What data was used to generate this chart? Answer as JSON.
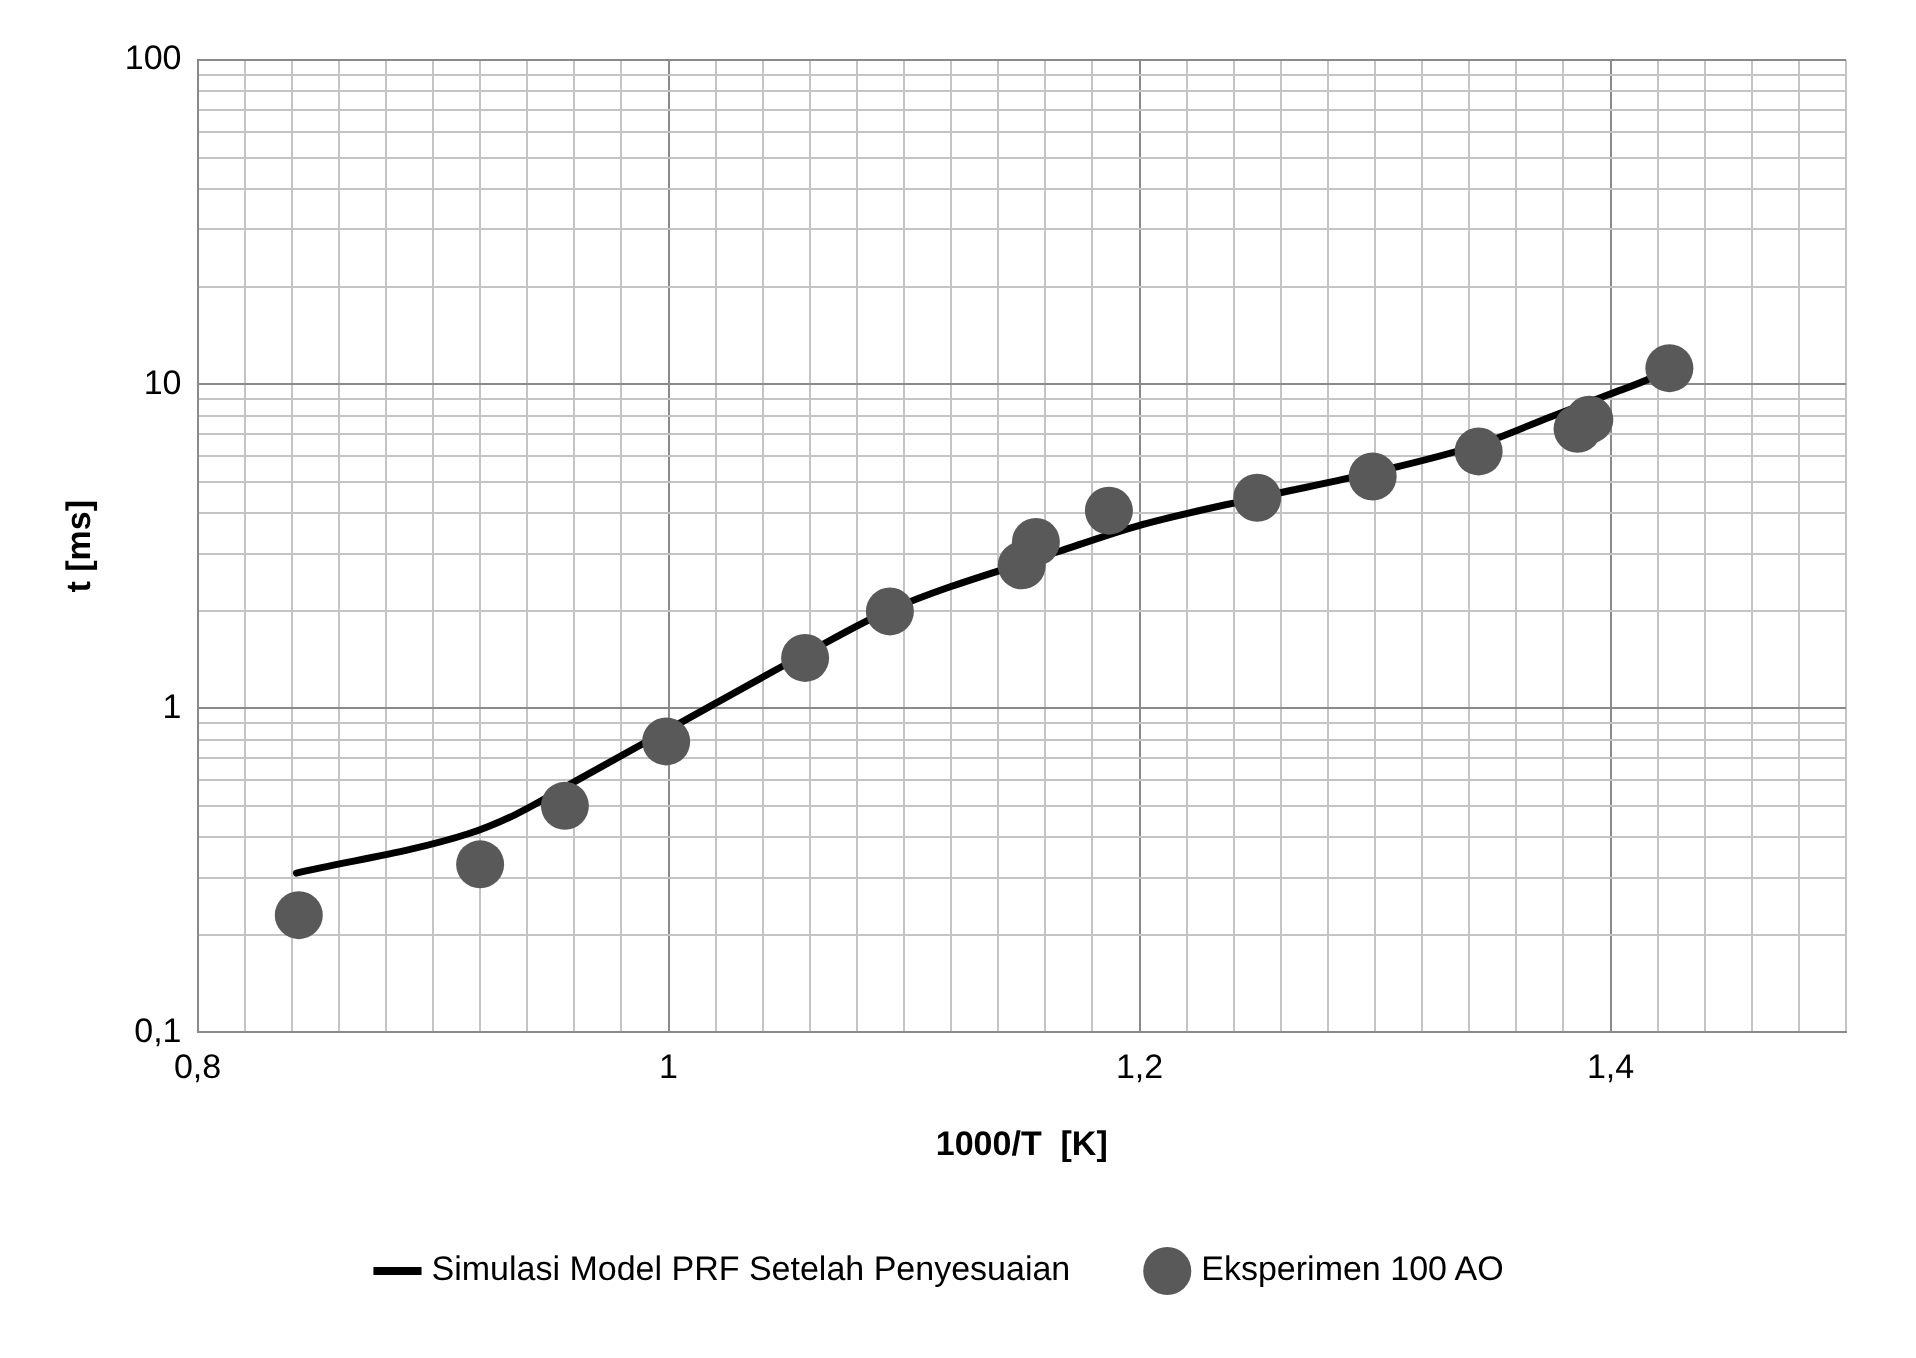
{
  "chart_data": {
    "type": "scatter",
    "xlabel": "1000/T  [K]",
    "ylabel": "t [ms]",
    "log": "y",
    "grid": true,
    "legend": "bottom",
    "xlim": [
      0.8,
      1.5
    ],
    "xticks": [
      {
        "value": 0.8,
        "label": "0,8"
      },
      {
        "value": 0.82,
        "label": null
      },
      {
        "value": 0.84,
        "label": null
      },
      {
        "value": 0.86,
        "label": null
      },
      {
        "value": 0.88,
        "label": null
      },
      {
        "value": 0.9,
        "label": null
      },
      {
        "value": 0.92,
        "label": null
      },
      {
        "value": 0.94,
        "label": null
      },
      {
        "value": 0.96,
        "label": null
      },
      {
        "value": 0.98,
        "label": null
      },
      {
        "value": 1,
        "label": "1"
      },
      {
        "value": 1.02,
        "label": null
      },
      {
        "value": 1.04,
        "label": null
      },
      {
        "value": 1.06,
        "label": null
      },
      {
        "value": 1.08,
        "label": null
      },
      {
        "value": 1.1,
        "label": null
      },
      {
        "value": 1.12,
        "label": null
      },
      {
        "value": 1.14,
        "label": null
      },
      {
        "value": 1.16,
        "label": null
      },
      {
        "value": 1.18,
        "label": null
      },
      {
        "value": 1.2,
        "label": "1,2"
      },
      {
        "value": 1.22,
        "label": null
      },
      {
        "value": 1.24,
        "label": null
      },
      {
        "value": 1.26,
        "label": null
      },
      {
        "value": 1.28,
        "label": null
      },
      {
        "value": 1.3,
        "label": null
      },
      {
        "value": 1.32,
        "label": null
      },
      {
        "value": 1.34,
        "label": null
      },
      {
        "value": 1.36,
        "label": null
      },
      {
        "value": 1.38,
        "label": null
      },
      {
        "value": 1.4,
        "label": "1,4"
      },
      {
        "value": 1.42,
        "label": null
      },
      {
        "value": 1.44,
        "label": null
      },
      {
        "value": 1.46,
        "label": null
      },
      {
        "value": 1.48,
        "label": null
      },
      {
        "value": 1.5,
        "label": null
      }
    ],
    "ylim": [
      0.1,
      100
    ],
    "yticks": [
      {
        "value": 0.1,
        "label": "0,1"
      },
      {
        "value": 0.2,
        "label": null
      },
      {
        "value": 0.3,
        "label": null
      },
      {
        "value": 0.4,
        "label": null
      },
      {
        "value": 0.5,
        "label": null
      },
      {
        "value": 0.6,
        "label": null
      },
      {
        "value": 0.7,
        "label": null
      },
      {
        "value": 0.8,
        "label": null
      },
      {
        "value": 0.9,
        "label": null
      },
      1,
      {
        "value": 2,
        "label": null
      },
      {
        "value": 3,
        "label": null
      },
      {
        "value": 4,
        "label": null
      },
      {
        "value": 5,
        "label": null
      },
      {
        "value": 6,
        "label": null
      },
      {
        "value": 7,
        "label": null
      },
      {
        "value": 8,
        "label": null
      },
      {
        "value": 9,
        "label": null
      },
      10,
      {
        "value": 20,
        "label": null
      },
      {
        "value": 30,
        "label": null
      },
      {
        "value": 40,
        "label": null
      },
      {
        "value": 50,
        "label": null
      },
      {
        "value": 60,
        "label": null
      },
      {
        "value": 70,
        "label": null
      },
      {
        "value": 80,
        "label": null
      },
      {
        "value": 90,
        "label": null
      },
      100
    ],
    "series": [
      {
        "name": "Simulasi Model PRF Setelah Penyesuaian",
        "type": "line",
        "color": "#000000",
        "marker": "none",
        "line_style": "solid",
        "x": [
          0.842,
          0.915,
          0.935,
          0.963,
          1.0,
          1.058,
          1.094,
          1.166,
          1.199,
          1.25,
          1.299,
          1.344,
          1.375,
          1.399,
          1.418,
          1.425
        ],
        "values": [
          0.31,
          0.41,
          0.47,
          0.61,
          0.86,
          1.47,
          2.01,
          3.05,
          3.65,
          4.46,
          5.33,
          6.5,
          7.95,
          9.27,
          10.5,
          11.2
        ]
      },
      {
        "name": "Eksperimen 100 AO",
        "type": "scatter",
        "color": "#595959",
        "marker": "circle",
        "x": [
          0.843,
          0.92,
          0.956,
          0.999,
          1.058,
          1.094,
          1.15,
          1.156,
          1.187,
          1.25,
          1.299,
          1.344,
          1.386,
          1.391,
          1.425
        ],
        "values": [
          0.23,
          0.33,
          0.5,
          0.79,
          1.43,
          1.99,
          2.76,
          3.26,
          4.07,
          4.46,
          5.19,
          6.2,
          7.28,
          7.77,
          11.2
        ]
      }
    ]
  }
}
